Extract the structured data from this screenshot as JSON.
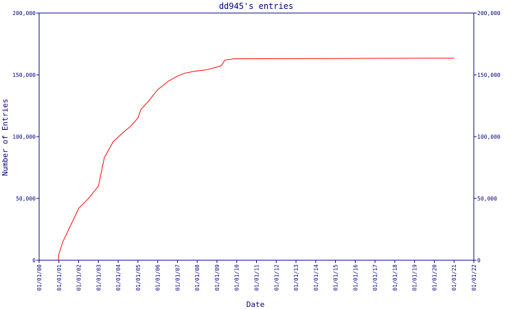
{
  "chart_data": {
    "type": "line",
    "title": "dd945's entries",
    "x_label": "Date",
    "y_label": "Number of Entries",
    "x": [
      0.97,
      1.0,
      1.2,
      1.5,
      2.0,
      2.5,
      3.0,
      3.3,
      3.75,
      4.3,
      4.6,
      5.0,
      5.15,
      5.5,
      6.0,
      6.55,
      7.0,
      7.4,
      7.9,
      8.45,
      9.15,
      9.25,
      9.4,
      9.85,
      21.0
    ],
    "series": [
      {
        "name": "entries",
        "color": "#ff0000",
        "values": [
          0,
          5000,
          15000,
          25000,
          42000,
          50000,
          60000,
          83000,
          96000,
          104000,
          108000,
          115000,
          122000,
          128000,
          138000,
          145000,
          149000,
          151500,
          153000,
          154000,
          157000,
          158000,
          162000,
          163000,
          163500
        ]
      }
    ],
    "xlim": [
      0,
      22
    ],
    "xticks": [
      {
        "value": 0,
        "label": "01/01/00"
      },
      {
        "value": 1,
        "label": "01/01/01"
      },
      {
        "value": 2,
        "label": "01/01/02"
      },
      {
        "value": 3,
        "label": "01/01/03"
      },
      {
        "value": 4,
        "label": "01/01/04"
      },
      {
        "value": 5,
        "label": "01/01/05"
      },
      {
        "value": 6,
        "label": "01/01/06"
      },
      {
        "value": 7,
        "label": "01/01/07"
      },
      {
        "value": 8,
        "label": "01/01/08"
      },
      {
        "value": 9,
        "label": "01/01/09"
      },
      {
        "value": 10,
        "label": "01/01/10"
      },
      {
        "value": 11,
        "label": "01/01/11"
      },
      {
        "value": 12,
        "label": "01/01/12"
      },
      {
        "value": 13,
        "label": "01/01/13"
      },
      {
        "value": 14,
        "label": "01/01/14"
      },
      {
        "value": 15,
        "label": "01/01/15"
      },
      {
        "value": 16,
        "label": "01/01/16"
      },
      {
        "value": 17,
        "label": "01/01/17"
      },
      {
        "value": 18,
        "label": "01/01/18"
      },
      {
        "value": 19,
        "label": "01/01/19"
      },
      {
        "value": 20,
        "label": "01/01/20"
      },
      {
        "value": 21,
        "label": "01/01/21"
      },
      {
        "value": 22,
        "label": "01/01/22"
      }
    ],
    "ylim": [
      0,
      200000
    ],
    "yticks": [
      0,
      {
        "value": 50000,
        "label": "50,000"
      },
      {
        "value": 100000,
        "label": "100,000"
      },
      {
        "value": 150000,
        "label": "150,000"
      },
      {
        "value": 200000,
        "label": "200,000"
      }
    ],
    "axis_color": "#000080"
  }
}
